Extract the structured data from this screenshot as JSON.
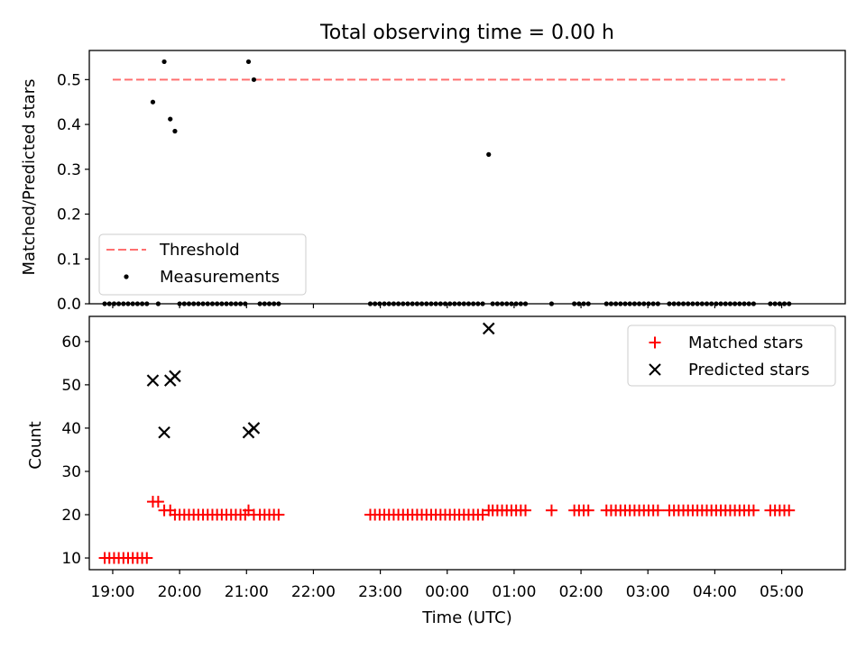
{
  "chart_data": [
    {
      "type": "scatter",
      "title": "Total observing time = 0.00 h",
      "xlabel": "",
      "ylabel": "Matched/Predicted stars",
      "xlim": [
        18.65,
        29.95
      ],
      "ylim": [
        0,
        0.565
      ],
      "yticks": [
        0.0,
        0.1,
        0.2,
        0.3,
        0.4,
        0.5
      ],
      "ytick_labels": [
        "0.0",
        "0.1",
        "0.2",
        "0.3",
        "0.4",
        "0.5"
      ],
      "xticks": [
        19,
        20,
        21,
        22,
        23,
        24,
        25,
        26,
        27,
        28,
        29
      ],
      "grid": false,
      "legend_position": "lower-left",
      "threshold": {
        "name": "Threshold",
        "value": 0.5,
        "x_range": [
          19.0,
          29.05
        ],
        "color": "#ff7070",
        "style": "dashed"
      },
      "series": [
        {
          "name": "Measurements",
          "color": "#000000",
          "marker": "dot",
          "points": [
            [
              18.88,
              0
            ],
            [
              18.95,
              0
            ],
            [
              19.02,
              0
            ],
            [
              19.09,
              0
            ],
            [
              19.16,
              0
            ],
            [
              19.23,
              0
            ],
            [
              19.3,
              0
            ],
            [
              19.37,
              0
            ],
            [
              19.44,
              0
            ],
            [
              19.51,
              0
            ],
            [
              19.6,
              0.45
            ],
            [
              19.68,
              0
            ],
            [
              19.77,
              0.54
            ],
            [
              19.86,
              0.412
            ],
            [
              19.93,
              0.385
            ],
            [
              20.0,
              0
            ],
            [
              20.07,
              0
            ],
            [
              20.14,
              0
            ],
            [
              20.21,
              0
            ],
            [
              20.28,
              0
            ],
            [
              20.35,
              0
            ],
            [
              20.42,
              0
            ],
            [
              20.49,
              0
            ],
            [
              20.56,
              0
            ],
            [
              20.63,
              0
            ],
            [
              20.7,
              0
            ],
            [
              20.77,
              0
            ],
            [
              20.84,
              0
            ],
            [
              20.91,
              0
            ],
            [
              20.98,
              0
            ],
            [
              21.03,
              0.54
            ],
            [
              21.11,
              0.5
            ],
            [
              21.2,
              0
            ],
            [
              21.27,
              0
            ],
            [
              21.34,
              0
            ],
            [
              21.41,
              0
            ],
            [
              21.48,
              0
            ],
            [
              22.85,
              0
            ],
            [
              22.92,
              0
            ],
            [
              22.99,
              0
            ],
            [
              23.06,
              0
            ],
            [
              23.13,
              0
            ],
            [
              23.2,
              0
            ],
            [
              23.27,
              0
            ],
            [
              23.34,
              0
            ],
            [
              23.41,
              0
            ],
            [
              23.48,
              0
            ],
            [
              23.55,
              0
            ],
            [
              23.62,
              0
            ],
            [
              23.69,
              0
            ],
            [
              23.76,
              0
            ],
            [
              23.83,
              0
            ],
            [
              23.9,
              0
            ],
            [
              23.97,
              0
            ],
            [
              24.04,
              0
            ],
            [
              24.11,
              0
            ],
            [
              24.18,
              0
            ],
            [
              24.25,
              0
            ],
            [
              24.32,
              0
            ],
            [
              24.39,
              0
            ],
            [
              24.46,
              0
            ],
            [
              24.53,
              0
            ],
            [
              24.62,
              0.333
            ],
            [
              24.68,
              0
            ],
            [
              24.75,
              0
            ],
            [
              24.82,
              0
            ],
            [
              24.89,
              0
            ],
            [
              24.96,
              0
            ],
            [
              25.03,
              0
            ],
            [
              25.1,
              0
            ],
            [
              25.17,
              0
            ],
            [
              25.56,
              0
            ],
            [
              25.9,
              0
            ],
            [
              25.97,
              0
            ],
            [
              26.04,
              0
            ],
            [
              26.11,
              0
            ],
            [
              26.38,
              0
            ],
            [
              26.45,
              0
            ],
            [
              26.52,
              0
            ],
            [
              26.59,
              0
            ],
            [
              26.66,
              0
            ],
            [
              26.73,
              0
            ],
            [
              26.8,
              0
            ],
            [
              26.87,
              0
            ],
            [
              26.94,
              0
            ],
            [
              27.01,
              0
            ],
            [
              27.08,
              0
            ],
            [
              27.15,
              0
            ],
            [
              27.32,
              0
            ],
            [
              27.39,
              0
            ],
            [
              27.46,
              0
            ],
            [
              27.53,
              0
            ],
            [
              27.6,
              0
            ],
            [
              27.67,
              0
            ],
            [
              27.74,
              0
            ],
            [
              27.81,
              0
            ],
            [
              27.88,
              0
            ],
            [
              27.95,
              0
            ],
            [
              28.02,
              0
            ],
            [
              28.09,
              0
            ],
            [
              28.16,
              0
            ],
            [
              28.23,
              0
            ],
            [
              28.3,
              0
            ],
            [
              28.37,
              0
            ],
            [
              28.44,
              0
            ],
            [
              28.51,
              0
            ],
            [
              28.58,
              0
            ],
            [
              28.83,
              0
            ],
            [
              28.9,
              0
            ],
            [
              28.97,
              0
            ],
            [
              29.04,
              0
            ],
            [
              29.11,
              0
            ]
          ]
        }
      ]
    },
    {
      "type": "scatter",
      "title": "",
      "xlabel": "Time (UTC)",
      "ylabel": "Count",
      "xlim": [
        18.65,
        29.95
      ],
      "ylim": [
        7.3,
        65.8
      ],
      "yticks": [
        10,
        20,
        30,
        40,
        50,
        60
      ],
      "ytick_labels": [
        "10",
        "20",
        "30",
        "40",
        "50",
        "60"
      ],
      "xticks": [
        19,
        20,
        21,
        22,
        23,
        24,
        25,
        26,
        27,
        28,
        29
      ],
      "xtick_labels": [
        "19:00",
        "20:00",
        "21:00",
        "22:00",
        "23:00",
        "00:00",
        "01:00",
        "02:00",
        "03:00",
        "04:00",
        "05:00"
      ],
      "grid": false,
      "legend_position": "upper-right",
      "series": [
        {
          "name": "Matched stars",
          "color": "#ff0000",
          "marker": "plus",
          "points": [
            [
              18.88,
              10
            ],
            [
              18.95,
              10
            ],
            [
              19.02,
              10
            ],
            [
              19.09,
              10
            ],
            [
              19.16,
              10
            ],
            [
              19.23,
              10
            ],
            [
              19.3,
              10
            ],
            [
              19.37,
              10
            ],
            [
              19.44,
              10
            ],
            [
              19.51,
              10
            ],
            [
              19.6,
              23
            ],
            [
              19.68,
              23
            ],
            [
              19.77,
              21
            ],
            [
              19.86,
              21
            ],
            [
              19.93,
              20
            ],
            [
              20.0,
              20
            ],
            [
              20.07,
              20
            ],
            [
              20.14,
              20
            ],
            [
              20.21,
              20
            ],
            [
              20.28,
              20
            ],
            [
              20.35,
              20
            ],
            [
              20.42,
              20
            ],
            [
              20.49,
              20
            ],
            [
              20.56,
              20
            ],
            [
              20.63,
              20
            ],
            [
              20.7,
              20
            ],
            [
              20.77,
              20
            ],
            [
              20.84,
              20
            ],
            [
              20.91,
              20
            ],
            [
              20.98,
              20
            ],
            [
              21.03,
              21
            ],
            [
              21.11,
              20
            ],
            [
              21.2,
              20
            ],
            [
              21.27,
              20
            ],
            [
              21.34,
              20
            ],
            [
              21.41,
              20
            ],
            [
              21.48,
              20
            ],
            [
              22.85,
              20
            ],
            [
              22.92,
              20
            ],
            [
              22.99,
              20
            ],
            [
              23.06,
              20
            ],
            [
              23.13,
              20
            ],
            [
              23.2,
              20
            ],
            [
              23.27,
              20
            ],
            [
              23.34,
              20
            ],
            [
              23.41,
              20
            ],
            [
              23.48,
              20
            ],
            [
              23.55,
              20
            ],
            [
              23.62,
              20
            ],
            [
              23.69,
              20
            ],
            [
              23.76,
              20
            ],
            [
              23.83,
              20
            ],
            [
              23.9,
              20
            ],
            [
              23.97,
              20
            ],
            [
              24.04,
              20
            ],
            [
              24.11,
              20
            ],
            [
              24.18,
              20
            ],
            [
              24.25,
              20
            ],
            [
              24.32,
              20
            ],
            [
              24.39,
              20
            ],
            [
              24.46,
              20
            ],
            [
              24.53,
              20
            ],
            [
              24.62,
              21
            ],
            [
              24.68,
              21
            ],
            [
              24.75,
              21
            ],
            [
              24.82,
              21
            ],
            [
              24.89,
              21
            ],
            [
              24.96,
              21
            ],
            [
              25.03,
              21
            ],
            [
              25.1,
              21
            ],
            [
              25.17,
              21
            ],
            [
              25.56,
              21
            ],
            [
              25.9,
              21
            ],
            [
              25.97,
              21
            ],
            [
              26.04,
              21
            ],
            [
              26.11,
              21
            ],
            [
              26.38,
              21
            ],
            [
              26.45,
              21
            ],
            [
              26.52,
              21
            ],
            [
              26.59,
              21
            ],
            [
              26.66,
              21
            ],
            [
              26.73,
              21
            ],
            [
              26.8,
              21
            ],
            [
              26.87,
              21
            ],
            [
              26.94,
              21
            ],
            [
              27.01,
              21
            ],
            [
              27.08,
              21
            ],
            [
              27.15,
              21
            ],
            [
              27.32,
              21
            ],
            [
              27.39,
              21
            ],
            [
              27.46,
              21
            ],
            [
              27.53,
              21
            ],
            [
              27.6,
              21
            ],
            [
              27.67,
              21
            ],
            [
              27.74,
              21
            ],
            [
              27.81,
              21
            ],
            [
              27.88,
              21
            ],
            [
              27.95,
              21
            ],
            [
              28.02,
              21
            ],
            [
              28.09,
              21
            ],
            [
              28.16,
              21
            ],
            [
              28.23,
              21
            ],
            [
              28.3,
              21
            ],
            [
              28.37,
              21
            ],
            [
              28.44,
              21
            ],
            [
              28.51,
              21
            ],
            [
              28.58,
              21
            ],
            [
              28.83,
              21
            ],
            [
              28.9,
              21
            ],
            [
              28.97,
              21
            ],
            [
              29.04,
              21
            ],
            [
              29.11,
              21
            ]
          ]
        },
        {
          "name": "Predicted stars",
          "color": "#000000",
          "marker": "x",
          "points": [
            [
              19.6,
              51
            ],
            [
              19.77,
              39
            ],
            [
              19.86,
              51
            ],
            [
              19.93,
              52
            ],
            [
              21.03,
              39
            ],
            [
              21.11,
              40
            ],
            [
              24.62,
              63
            ]
          ]
        }
      ]
    }
  ]
}
